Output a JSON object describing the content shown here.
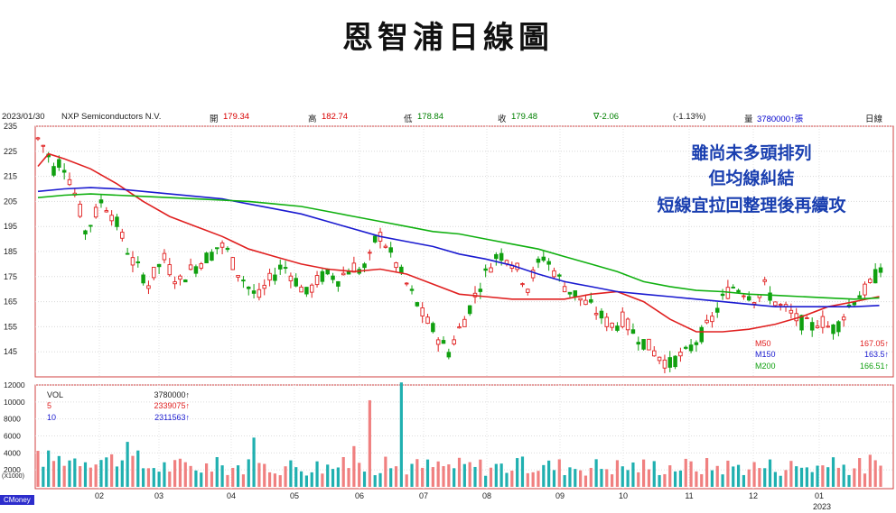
{
  "title": "恩智浦日線圖",
  "header": {
    "date": "2023/01/30",
    "company": "NXP Semiconductors N.V.",
    "open_label": "開",
    "open": "179.34",
    "high_label": "高",
    "high": "182.74",
    "low_label": "低",
    "low": "178.84",
    "close_label": "收",
    "close": "179.48",
    "change": "∇-2.06",
    "change_pct": "(-1.13%)",
    "volume_label": "量",
    "volume": "3780000↑張",
    "period": "日線"
  },
  "annotation": {
    "line1": "雖尚未多頭排列",
    "line2": "但均線糾結",
    "line3": "短線宜拉回整理後再續攻"
  },
  "ma_legend": [
    {
      "name": "M50",
      "value": "167.05↑",
      "color": "#e02020"
    },
    {
      "name": "M150",
      "value": "163.5↑",
      "color": "#1a1ad0"
    },
    {
      "name": "M200",
      "value": "166.51↑",
      "color": "#10b010"
    }
  ],
  "vol_legend": [
    {
      "name": "VOL",
      "value": "3780000↑",
      "color": "#222222"
    },
    {
      "name": "5",
      "value": "2339075↑",
      "color": "#e02020"
    },
    {
      "name": "10",
      "value": "2311563↑",
      "color": "#1a1ad0"
    }
  ],
  "brand": "CMoney",
  "chart_data": [
    {
      "type": "candlestick",
      "ylim": [
        135,
        235
      ],
      "y_ticks": [
        235,
        225,
        215,
        205,
        195,
        185,
        175,
        165,
        155,
        145
      ],
      "x_labels": [
        "02",
        "03",
        "04",
        "05",
        "06",
        "07",
        "08",
        "09",
        "10",
        "11",
        "12",
        "01"
      ],
      "x_sublabel": "2023",
      "colors": {
        "up": "#e02020",
        "down": "#10a010"
      },
      "close_path": [
        [
          0,
          230
        ],
        [
          6,
          226
        ],
        [
          12,
          218
        ],
        [
          18,
          222
        ],
        [
          24,
          214
        ],
        [
          30,
          205
        ],
        [
          36,
          193
        ],
        [
          42,
          198
        ],
        [
          48,
          205
        ],
        [
          54,
          202
        ],
        [
          60,
          196
        ],
        [
          66,
          188
        ],
        [
          72,
          181
        ],
        [
          78,
          177
        ],
        [
          84,
          172
        ],
        [
          90,
          178
        ],
        [
          96,
          182
        ],
        [
          102,
          176
        ],
        [
          108,
          173
        ],
        [
          114,
          177
        ],
        [
          120,
          179
        ],
        [
          126,
          182
        ],
        [
          132,
          184
        ],
        [
          138,
          188
        ],
        [
          144,
          185
        ],
        [
          150,
          178
        ],
        [
          156,
          174
        ],
        [
          162,
          169
        ],
        [
          168,
          167
        ],
        [
          174,
          172
        ],
        [
          180,
          176
        ],
        [
          186,
          180
        ],
        [
          192,
          176
        ],
        [
          198,
          172
        ],
        [
          204,
          168
        ],
        [
          210,
          172
        ],
        [
          216,
          175
        ],
        [
          222,
          176
        ],
        [
          228,
          174
        ],
        [
          234,
          177
        ],
        [
          240,
          179
        ],
        [
          246,
          177
        ],
        [
          252,
          182
        ],
        [
          258,
          193
        ],
        [
          264,
          188
        ],
        [
          270,
          182
        ],
        [
          276,
          176
        ],
        [
          282,
          170
        ],
        [
          288,
          164
        ],
        [
          294,
          158
        ],
        [
          300,
          154
        ],
        [
          306,
          149
        ],
        [
          312,
          145
        ],
        [
          318,
          152
        ],
        [
          324,
          158
        ],
        [
          330,
          165
        ],
        [
          336,
          172
        ],
        [
          342,
          178
        ],
        [
          348,
          183
        ],
        [
          354,
          184
        ],
        [
          360,
          181
        ],
        [
          366,
          176
        ],
        [
          372,
          171
        ],
        [
          378,
          178
        ],
        [
          384,
          183
        ],
        [
          390,
          179
        ],
        [
          396,
          174
        ],
        [
          402,
          170
        ],
        [
          408,
          168
        ],
        [
          414,
          165
        ],
        [
          420,
          163
        ],
        [
          426,
          160
        ],
        [
          432,
          157
        ],
        [
          438,
          155
        ],
        [
          444,
          158
        ],
        [
          450,
          154
        ],
        [
          456,
          151
        ],
        [
          462,
          148
        ],
        [
          468,
          145
        ],
        [
          474,
          142
        ],
        [
          480,
          140
        ],
        [
          486,
          143
        ],
        [
          492,
          144
        ],
        [
          498,
          148
        ],
        [
          504,
          152
        ],
        [
          510,
          156
        ],
        [
          516,
          162
        ],
        [
          522,
          168
        ],
        [
          528,
          171
        ],
        [
          534,
          170
        ],
        [
          540,
          168
        ],
        [
          546,
          166
        ],
        [
          552,
          171
        ],
        [
          558,
          166
        ],
        [
          564,
          163
        ],
        [
          570,
          161
        ],
        [
          576,
          158
        ],
        [
          582,
          156
        ],
        [
          588,
          155
        ],
        [
          594,
          158
        ],
        [
          600,
          155
        ],
        [
          606,
          154
        ],
        [
          612,
          160
        ],
        [
          618,
          165
        ],
        [
          624,
          168
        ],
        [
          630,
          170
        ],
        [
          636,
          175
        ],
        [
          639,
          179
        ]
      ]
    },
    {
      "type": "line",
      "ylim": [
        135,
        235
      ],
      "series": [
        {
          "name": "M50",
          "values": [
            [
              0,
              219
            ],
            [
              8,
              224
            ],
            [
              20,
              222
            ],
            [
              40,
              218
            ],
            [
              60,
              212
            ],
            [
              80,
              205
            ],
            [
              100,
              199
            ],
            [
              120,
              195
            ],
            [
              140,
              191
            ],
            [
              160,
              186
            ],
            [
              180,
              183
            ],
            [
              200,
              180
            ],
            [
              220,
              178
            ],
            [
              240,
              177
            ],
            [
              260,
              178
            ],
            [
              280,
              176
            ],
            [
              300,
              172
            ],
            [
              320,
              168
            ],
            [
              340,
              167
            ],
            [
              360,
              166
            ],
            [
              380,
              166
            ],
            [
              400,
              166
            ],
            [
              420,
              168
            ],
            [
              440,
              169
            ],
            [
              460,
              165
            ],
            [
              480,
              158
            ],
            [
              500,
              153
            ],
            [
              520,
              153
            ],
            [
              540,
              154
            ],
            [
              560,
              156
            ],
            [
              580,
              159
            ],
            [
              600,
              163
            ],
            [
              620,
              165
            ],
            [
              639,
              167.05
            ]
          ]
        },
        {
          "name": "M150",
          "values": [
            [
              0,
              209
            ],
            [
              20,
              210
            ],
            [
              40,
              210.5
            ],
            [
              60,
              210
            ],
            [
              80,
              209
            ],
            [
              100,
              208
            ],
            [
              120,
              207
            ],
            [
              140,
              206
            ],
            [
              160,
              204
            ],
            [
              180,
              202
            ],
            [
              200,
              200
            ],
            [
              220,
              197
            ],
            [
              240,
              194
            ],
            [
              260,
              191
            ],
            [
              280,
              189
            ],
            [
              300,
              187
            ],
            [
              320,
              184
            ],
            [
              340,
              182
            ],
            [
              360,
              179.5
            ],
            [
              380,
              176
            ],
            [
              400,
              173
            ],
            [
              420,
              171
            ],
            [
              440,
              169
            ],
            [
              460,
              168
            ],
            [
              480,
              167
            ],
            [
              500,
              166
            ],
            [
              520,
              165
            ],
            [
              540,
              164
            ],
            [
              560,
              163
            ],
            [
              580,
              163
            ],
            [
              600,
              163
            ],
            [
              620,
              163
            ],
            [
              639,
              163.5
            ]
          ]
        },
        {
          "name": "M200",
          "values": [
            [
              0,
              206.5
            ],
            [
              20,
              207.5
            ],
            [
              40,
              208
            ],
            [
              60,
              207.5
            ],
            [
              80,
              207
            ],
            [
              100,
              206.5
            ],
            [
              120,
              206
            ],
            [
              140,
              205.5
            ],
            [
              160,
              205
            ],
            [
              180,
              204
            ],
            [
              200,
              203
            ],
            [
              220,
              201
            ],
            [
              240,
              199
            ],
            [
              260,
              197
            ],
            [
              280,
              195
            ],
            [
              300,
              193
            ],
            [
              320,
              192
            ],
            [
              340,
              190
            ],
            [
              360,
              188
            ],
            [
              380,
              186
            ],
            [
              400,
              183
            ],
            [
              420,
              180
            ],
            [
              440,
              177
            ],
            [
              460,
              173
            ],
            [
              480,
              171
            ],
            [
              500,
              169.5
            ],
            [
              520,
              169
            ],
            [
              540,
              168
            ],
            [
              560,
              167.5
            ],
            [
              580,
              167
            ],
            [
              600,
              166.5
            ],
            [
              620,
              166
            ],
            [
              639,
              166.51
            ]
          ]
        }
      ]
    },
    {
      "type": "bar",
      "ylim": [
        0,
        12000
      ],
      "y_ticks": [
        12000,
        10000,
        8000,
        6000,
        4000,
        2000
      ],
      "y_unit_label": "(X1000)",
      "colors": {
        "up": "#f08080",
        "down": "#20b0b0"
      },
      "spikes": [
        {
          "x": 253,
          "value": 10200
        },
        {
          "x": 277,
          "value": 12300
        },
        {
          "x": 165,
          "value": 5800
        },
        {
          "x": 67,
          "value": 5300
        },
        {
          "x": 240,
          "value": 4800
        },
        {
          "x": 633,
          "value": 3780
        }
      ]
    }
  ]
}
